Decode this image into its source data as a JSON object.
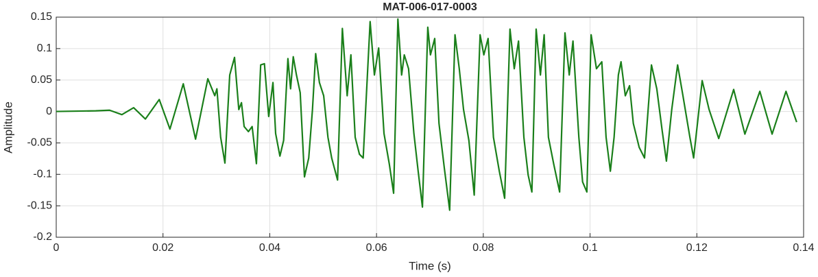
{
  "chart_data": {
    "type": "line",
    "title": "MAT-006-017-0003",
    "x_label": "Time (s)",
    "y_label": "Amplitude",
    "xlim": [
      0,
      0.14
    ],
    "xticks": [
      0,
      0.02,
      0.04,
      0.06,
      0.08,
      0.1,
      0.12,
      0.14
    ],
    "ylim": [
      -0.2,
      0.15
    ],
    "yticks": [
      -0.2,
      -0.15,
      -0.1,
      -0.05,
      0,
      0.05,
      0.1,
      0.15
    ],
    "grid": true,
    "x": [
      0,
      0.0074,
      0.01,
      0.0123,
      0.0145,
      0.0167,
      0.0193,
      0.0213,
      0.0238,
      0.0261,
      0.0284,
      0.0297,
      0.0301,
      0.0308,
      0.0316,
      0.0325,
      0.0334,
      0.0342,
      0.0347,
      0.0352,
      0.036,
      0.0367,
      0.0375,
      0.0383,
      0.039,
      0.0398,
      0.0406,
      0.0411,
      0.0419,
      0.0426,
      0.0434,
      0.0439,
      0.0444,
      0.045,
      0.0457,
      0.0465,
      0.0473,
      0.048,
      0.0486,
      0.0493,
      0.0501,
      0.0509,
      0.0516,
      0.0527,
      0.0536,
      0.0545,
      0.0552,
      0.056,
      0.0568,
      0.0575,
      0.0588,
      0.0596,
      0.0604,
      0.0614,
      0.0624,
      0.0632,
      0.064,
      0.0647,
      0.0652,
      0.066,
      0.067,
      0.0678,
      0.0686,
      0.0696,
      0.0701,
      0.0709,
      0.0717,
      0.0727,
      0.0737,
      0.0747,
      0.0755,
      0.0763,
      0.0773,
      0.0783,
      0.0794,
      0.0801,
      0.0809,
      0.0819,
      0.083,
      0.084,
      0.085,
      0.0858,
      0.0866,
      0.0876,
      0.0884,
      0.0891,
      0.0899,
      0.0907,
      0.0914,
      0.0922,
      0.0932,
      0.0943,
      0.0953,
      0.0961,
      0.0968,
      0.0979,
      0.0986,
      0.0994,
      0.1002,
      0.1012,
      0.1022,
      0.103,
      0.1038,
      0.1045,
      0.1053,
      0.1058,
      0.1066,
      0.1074,
      0.1081,
      0.1092,
      0.1102,
      0.1115,
      0.1125,
      0.1135,
      0.1143,
      0.1153,
      0.1164,
      0.1174,
      0.1187,
      0.1194,
      0.121,
      0.1223,
      0.1241,
      0.1269,
      0.129,
      0.1318,
      0.1341,
      0.1367,
      0.1387
    ],
    "series": [
      {
        "color": "#1a7f1a",
        "values": [
          0,
          0.001,
          0.002,
          -0.005,
          0.006,
          -0.012,
          0.019,
          -0.028,
          0.044,
          -0.044,
          0.052,
          0.025,
          0.036,
          -0.041,
          -0.082,
          0.058,
          0.086,
          0.003,
          0.014,
          -0.024,
          -0.032,
          -0.024,
          -0.083,
          0.074,
          0.076,
          -0.008,
          0.046,
          -0.035,
          -0.071,
          -0.046,
          0.084,
          0.036,
          0.087,
          0.058,
          0.03,
          -0.104,
          -0.074,
          0.003,
          0.092,
          0.046,
          0.025,
          -0.041,
          -0.074,
          -0.109,
          0.132,
          0.025,
          0.09,
          -0.041,
          -0.068,
          -0.074,
          0.143,
          0.058,
          0.101,
          -0.035,
          -0.084,
          -0.13,
          0.147,
          0.058,
          0.09,
          0.068,
          -0.035,
          -0.095,
          -0.152,
          0.134,
          0.09,
          0.116,
          -0.019,
          -0.09,
          -0.157,
          0.122,
          0.068,
          0.003,
          -0.046,
          -0.133,
          0.122,
          0.09,
          0.116,
          -0.041,
          -0.095,
          -0.138,
          0.131,
          0.068,
          0.112,
          -0.041,
          -0.101,
          -0.128,
          0.131,
          0.058,
          0.122,
          -0.041,
          -0.084,
          -0.128,
          0.125,
          0.058,
          0.112,
          -0.041,
          -0.112,
          -0.128,
          0.122,
          0.068,
          0.079,
          -0.041,
          -0.095,
          -0.041,
          0.058,
          0.079,
          0.025,
          0.041,
          -0.019,
          -0.057,
          -0.074,
          0.074,
          0.036,
          -0.03,
          -0.079,
          0.003,
          0.074,
          0.025,
          -0.041,
          -0.074,
          0.049,
          0.003,
          -0.043,
          0.035,
          -0.036,
          0.032,
          -0.036,
          0.032,
          -0.017
        ]
      }
    ]
  }
}
